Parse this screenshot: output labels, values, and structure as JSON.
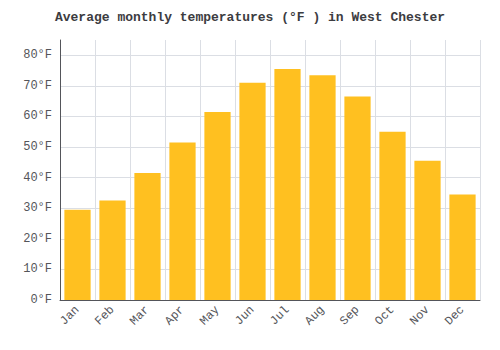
{
  "chart_data": {
    "type": "bar",
    "title": "Average monthly temperatures (°F ) in West Chester",
    "categories": [
      "Jan",
      "Feb",
      "Mar",
      "Apr",
      "May",
      "Jun",
      "Jul",
      "Aug",
      "Sep",
      "Oct",
      "Nov",
      "Dec"
    ],
    "values": [
      29.5,
      32.5,
      41.5,
      51.5,
      61.5,
      71.0,
      75.5,
      73.5,
      66.5,
      55.0,
      45.5,
      34.5
    ],
    "color": "#FFC020",
    "ylim": [
      0,
      85
    ],
    "yticks": [
      {
        "value": 0,
        "label": "0°F"
      },
      {
        "value": 10,
        "label": "10°F"
      },
      {
        "value": 20,
        "label": "20°F"
      },
      {
        "value": 30,
        "label": "30°F"
      },
      {
        "value": 40,
        "label": "40°F"
      },
      {
        "value": 50,
        "label": "50°F"
      },
      {
        "value": 60,
        "label": "60°F"
      },
      {
        "value": 70,
        "label": "70°F"
      },
      {
        "value": 80,
        "label": "80°F"
      }
    ],
    "grid": true
  }
}
